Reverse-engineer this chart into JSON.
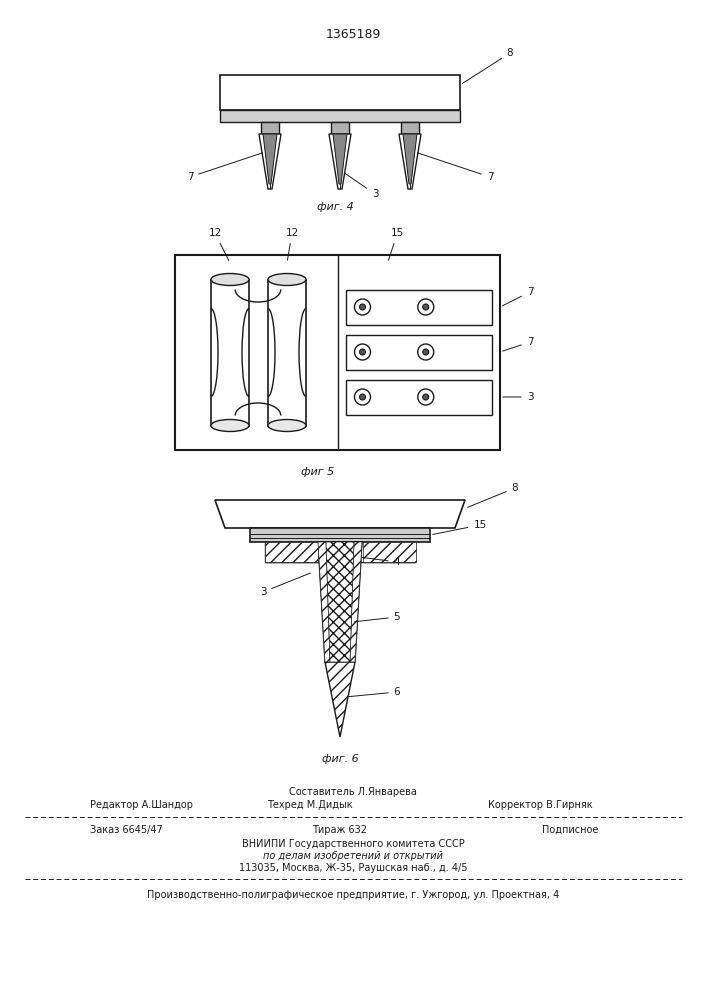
{
  "patent_number": "1365189",
  "bg_color": "#ffffff",
  "line_color": "#1a1a1a",
  "fig4_caption": "фиг. 4",
  "fig5_caption": "фиг 5",
  "fig6_caption": "фиг. 6"
}
